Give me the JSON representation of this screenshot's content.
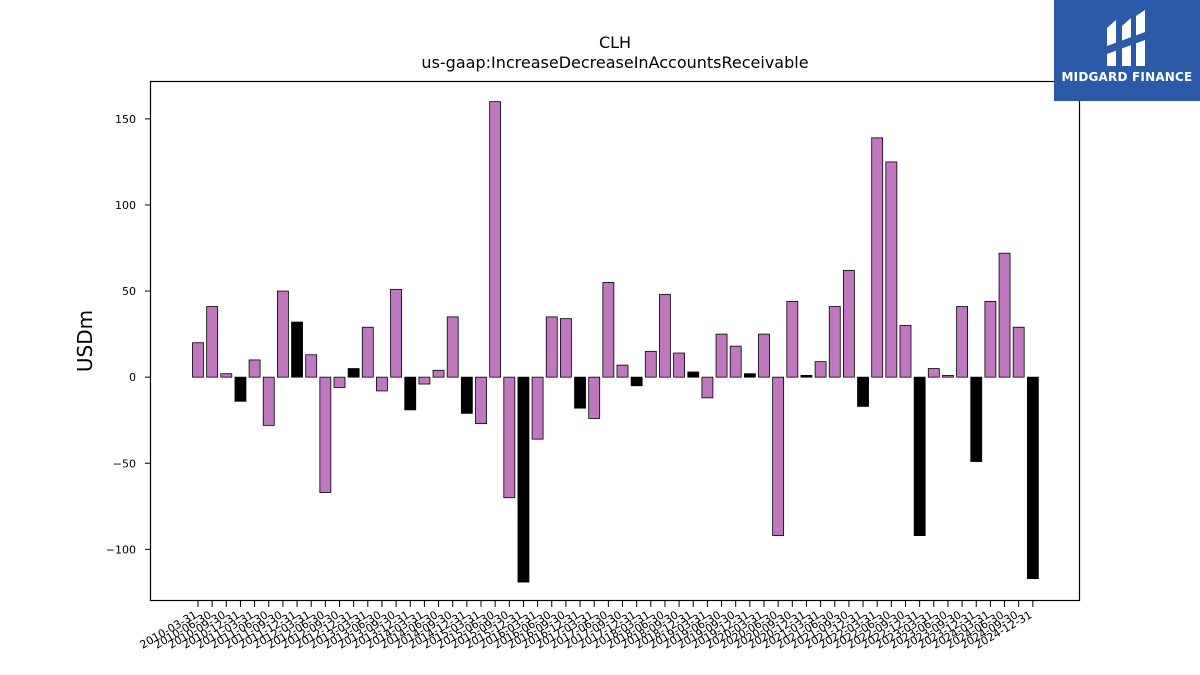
{
  "chart_data": {
    "type": "bar",
    "title": "CLH",
    "subtitle": "us-gaap:IncreaseDecreaseInAccountsReceivable",
    "ylabel": "USDm",
    "xlabel": "",
    "ylim": [
      -130,
      172
    ],
    "yticks": [
      -100,
      -50,
      0,
      50,
      100,
      150
    ],
    "ytick_labels": [
      "−100",
      "−50",
      "0",
      "50",
      "100",
      "150"
    ],
    "grid": false,
    "colors": {
      "normal": "#bf77bf",
      "highlight": "#000000",
      "edge": "#000000"
    },
    "categories": [
      "2010-03-31",
      "2010-06-30",
      "2010-09-30",
      "2010-12-31",
      "2011-03-31",
      "2011-06-30",
      "2011-09-30",
      "2011-12-31",
      "2012-03-31",
      "2012-06-30",
      "2012-09-30",
      "2012-12-31",
      "2013-03-31",
      "2013-06-30",
      "2013-09-30",
      "2013-12-31",
      "2014-03-31",
      "2014-06-30",
      "2014-09-30",
      "2014-12-31",
      "2015-03-31",
      "2015-06-30",
      "2015-09-30",
      "2015-12-31",
      "2016-03-31",
      "2016-06-30",
      "2016-09-30",
      "2016-12-31",
      "2017-03-31",
      "2017-06-30",
      "2017-09-30",
      "2017-12-31",
      "2018-03-31",
      "2018-06-30",
      "2018-09-30",
      "2018-12-31",
      "2019-03-31",
      "2019-06-30",
      "2019-09-30",
      "2019-12-31",
      "2020-03-31",
      "2020-06-30",
      "2020-09-30",
      "2020-12-31",
      "2021-03-31",
      "2021-06-30",
      "2021-09-30",
      "2021-12-31",
      "2022-03-31",
      "2022-06-30",
      "2022-09-30",
      "2022-12-31",
      "2023-03-31",
      "2023-06-30",
      "2023-09-30",
      "2023-12-31",
      "2024-03-31",
      "2024-06-30",
      "2024-09-30",
      "2024-12-31"
    ],
    "values": [
      20,
      41,
      2,
      -14,
      10,
      -28,
      50,
      32,
      13,
      -67,
      -6,
      5,
      29,
      -8,
      51,
      -19,
      -4,
      4,
      35,
      -21,
      -27,
      160,
      -70,
      -119,
      -36,
      35,
      34,
      -18,
      -24,
      55,
      7,
      -5,
      15,
      48,
      14,
      3,
      -12,
      25,
      18,
      2,
      25,
      -92,
      44,
      1,
      9,
      41,
      62,
      -17,
      139,
      125,
      30,
      -92,
      5,
      1,
      41,
      -49,
      44,
      72,
      29,
      -117
    ],
    "highlight": [
      false,
      false,
      false,
      true,
      false,
      false,
      false,
      true,
      false,
      false,
      false,
      true,
      false,
      false,
      false,
      true,
      false,
      false,
      false,
      true,
      false,
      false,
      false,
      true,
      false,
      false,
      false,
      true,
      false,
      false,
      false,
      true,
      false,
      false,
      false,
      true,
      false,
      false,
      false,
      true,
      false,
      false,
      false,
      true,
      false,
      false,
      false,
      true,
      false,
      false,
      false,
      true,
      false,
      false,
      false,
      true,
      false,
      false,
      false,
      true
    ]
  },
  "logo": {
    "text": "MIDGARD FINANCE",
    "icon": "midgard-logo-icon",
    "background": "#2a5aa8"
  }
}
